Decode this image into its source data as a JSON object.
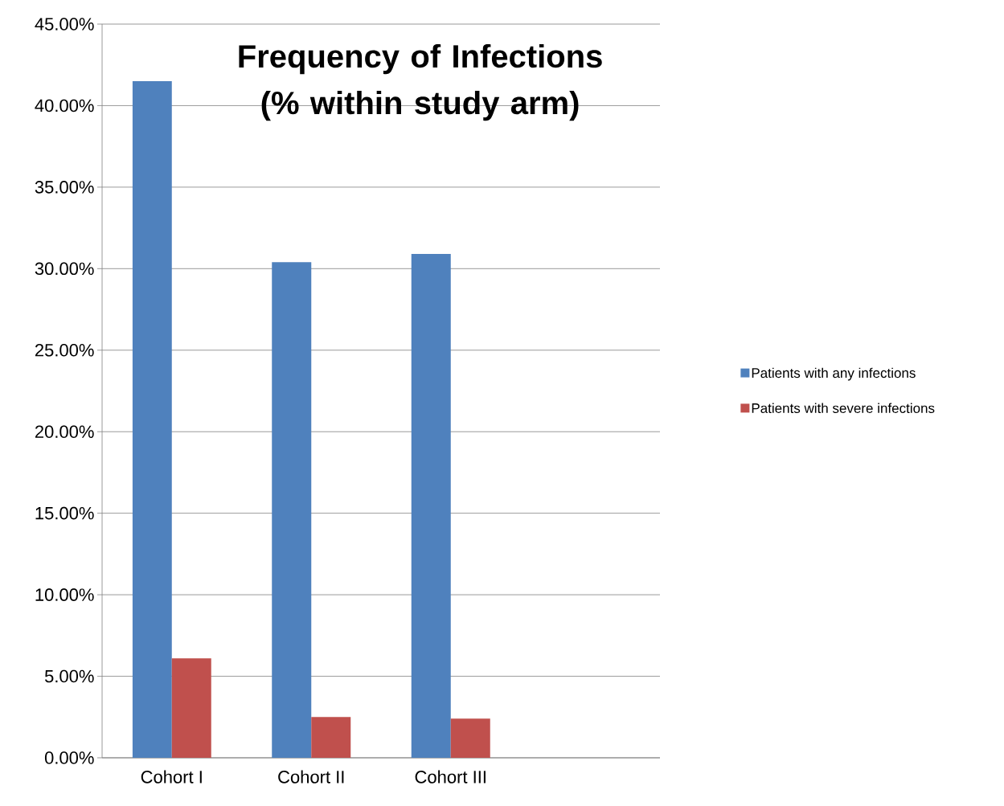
{
  "chart_data": {
    "type": "bar",
    "title": "Frequency of Infections (% within study arm)",
    "categories": [
      "Cohort I",
      "Cohort II",
      "Cohort III",
      null
    ],
    "series": [
      {
        "name": "Patients with any infections",
        "color": "#4f81bd",
        "values": [
          41.5,
          30.4,
          30.9,
          null
        ]
      },
      {
        "name": "Patients with severe infections",
        "color": "#c0504d",
        "values": [
          6.1,
          2.5,
          2.4,
          null
        ]
      }
    ],
    "ylim": [
      0,
      45
    ],
    "yticks": [
      {
        "value": 0,
        "label": "0.00%"
      },
      {
        "value": 5,
        "label": "5.00%"
      },
      {
        "value": 10,
        "label": "10.00%"
      },
      {
        "value": 15,
        "label": "15.00%"
      },
      {
        "value": 20,
        "label": "20.00%"
      },
      {
        "value": 25,
        "label": "25.00%"
      },
      {
        "value": 30,
        "label": "30.00%"
      },
      {
        "value": 35,
        "label": "35.00%"
      },
      {
        "value": 40,
        "label": "40.00%"
      },
      {
        "value": 45,
        "label": "45.00%"
      }
    ],
    "grid": "y",
    "legend": "right"
  }
}
